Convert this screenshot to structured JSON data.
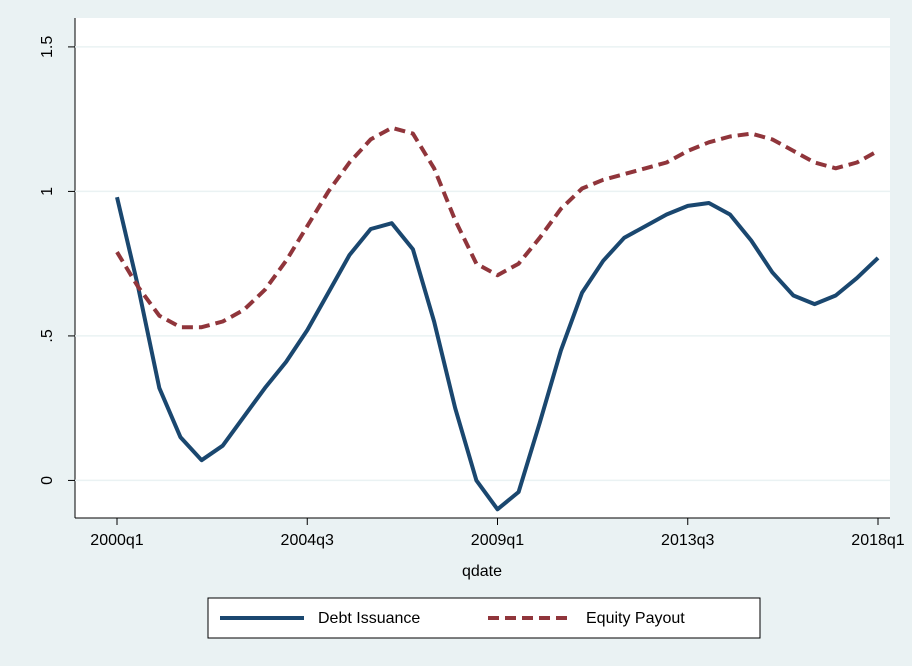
{
  "chart_data": {
    "type": "line",
    "x_label": "qdate",
    "x": [
      "2000q1",
      null,
      null,
      null,
      null,
      null,
      null,
      null,
      null,
      "2004q3",
      null,
      null,
      null,
      null,
      null,
      null,
      null,
      null,
      "2009q1",
      null,
      null,
      null,
      null,
      null,
      null,
      null,
      null,
      "2013q3",
      null,
      null,
      null,
      null,
      null,
      null,
      null,
      null,
      "2018q1"
    ],
    "series": [
      {
        "name": "Debt Issuance",
        "color": "#1a476f",
        "dash": "solid",
        "values": [
          0.98,
          0.67,
          0.32,
          0.15,
          0.07,
          0.12,
          0.22,
          0.32,
          0.41,
          0.52,
          0.65,
          0.78,
          0.87,
          0.89,
          0.8,
          0.55,
          0.25,
          0.0,
          -0.1,
          -0.04,
          0.2,
          0.45,
          0.65,
          0.76,
          0.84,
          0.88,
          0.92,
          0.95,
          0.96,
          0.92,
          0.83,
          0.72,
          0.64,
          0.61,
          0.64,
          0.7,
          0.77
        ]
      },
      {
        "name": "Equity Payout",
        "color": "#90353b",
        "dash": "dashed",
        "values": [
          0.79,
          0.67,
          0.57,
          0.53,
          0.53,
          0.55,
          0.59,
          0.66,
          0.76,
          0.88,
          1.0,
          1.1,
          1.18,
          1.22,
          1.2,
          1.08,
          0.9,
          0.75,
          0.71,
          0.75,
          0.84,
          0.94,
          1.01,
          1.04,
          1.06,
          1.08,
          1.1,
          1.14,
          1.17,
          1.19,
          1.2,
          1.18,
          1.14,
          1.1,
          1.08,
          1.1,
          1.14
        ]
      }
    ],
    "ylim": [
      -0.13,
      1.6
    ],
    "yticks": [
      0,
      {
        "value": 0.5,
        "label": ".5"
      },
      1,
      1.5
    ],
    "grid": true
  }
}
